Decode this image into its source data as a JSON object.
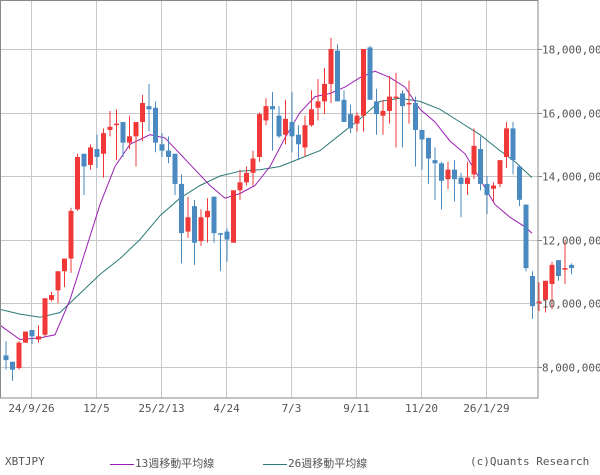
{
  "symbol": "XBTJPY",
  "copyright": "(c)Quants Research",
  "legend": [
    {
      "label": "13週移動平均線",
      "color": "#9B1FB4"
    },
    {
      "label": "26週移動平均線",
      "color": "#2A7A78"
    }
  ],
  "colors": {
    "up": "#F03838",
    "down": "#4A8AC0",
    "grid": "#C8C8C8",
    "axis": "#888888"
  },
  "chart_data": {
    "type": "candlestick",
    "title": "XBTJPY",
    "xlabel": "",
    "ylabel": "",
    "ylim": [
      7000000,
      19500000
    ],
    "grid": true,
    "legend_position": "bottom",
    "y_ticks": [
      {
        "value": 8000000,
        "label": "8,000,000"
      },
      {
        "value": 10000000,
        "label": "10,000,00"
      },
      {
        "value": 12000000,
        "label": "12,000,00"
      },
      {
        "value": 14000000,
        "label": "14,000,00"
      },
      {
        "value": 16000000,
        "label": "16,000,00"
      },
      {
        "value": 18000000,
        "label": "18,000,00"
      }
    ],
    "x_ticks": [
      {
        "index": 4,
        "label": "24/9/26"
      },
      {
        "index": 14,
        "label": "12/5"
      },
      {
        "index": 24,
        "label": "25/2/13"
      },
      {
        "index": 34,
        "label": "4/24"
      },
      {
        "index": 44,
        "label": "7/3"
      },
      {
        "index": 54,
        "label": "9/11"
      },
      {
        "index": 64,
        "label": "11/20"
      },
      {
        "index": 74,
        "label": "26/1/29"
      }
    ],
    "candles_ohlc": [
      [
        8350000,
        8800000,
        7900000,
        8200000
      ],
      [
        8150000,
        8100000,
        7550000,
        7900000
      ],
      [
        7950000,
        8800000,
        7900000,
        8750000
      ],
      [
        8750000,
        9050000,
        8750000,
        9100000
      ],
      [
        9150000,
        9150000,
        8700000,
        8950000
      ],
      [
        8850000,
        9300000,
        8750000,
        8950000
      ],
      [
        9000000,
        10100000,
        8950000,
        10150000
      ],
      [
        10100000,
        10350000,
        10050000,
        10250000
      ],
      [
        10400000,
        11000000,
        10000000,
        11000000
      ],
      [
        11000000,
        11300000,
        10500000,
        11400000
      ],
      [
        11400000,
        13000000,
        10950000,
        12900000
      ],
      [
        12950000,
        14700000,
        12900000,
        14600000
      ],
      [
        14700000,
        14600000,
        13400000,
        14300000
      ],
      [
        14350000,
        15000000,
        14200000,
        14900000
      ],
      [
        14850000,
        15300000,
        14250000,
        14600000
      ],
      [
        14700000,
        15500000,
        13950000,
        15350000
      ],
      [
        15450000,
        16050000,
        15250000,
        15550000
      ],
      [
        15600000,
        16100000,
        14500000,
        15650000
      ],
      [
        15700000,
        15700000,
        14600000,
        15050000
      ],
      [
        15050000,
        15900000,
        14850000,
        15250000
      ],
      [
        15250000,
        15700000,
        14300000,
        15700000
      ],
      [
        15700000,
        16550000,
        15100000,
        16300000
      ],
      [
        16200000,
        16900000,
        15400000,
        16100000
      ],
      [
        16150000,
        16350000,
        14750000,
        15050000
      ],
      [
        15000000,
        15350000,
        14600000,
        14800000
      ],
      [
        14800000,
        15250000,
        14400000,
        14600000
      ],
      [
        14700000,
        14500000,
        13400000,
        13750000
      ],
      [
        13750000,
        14050000,
        11250000,
        12200000
      ],
      [
        12250000,
        13350000,
        12050000,
        12700000
      ],
      [
        13050000,
        13250000,
        11200000,
        11900000
      ],
      [
        11950000,
        12950000,
        11800000,
        12700000
      ],
      [
        12700000,
        13300000,
        11900000,
        12900000
      ],
      [
        13350000,
        13350000,
        11900000,
        12200000
      ],
      [
        12200000,
        12100000,
        11000000,
        12150000
      ],
      [
        12250000,
        12350000,
        11300000,
        12000000
      ],
      [
        11900000,
        13400000,
        11900000,
        13550000
      ],
      [
        13550000,
        14200000,
        13250000,
        13800000
      ],
      [
        13800000,
        14300000,
        13700000,
        14100000
      ],
      [
        14100000,
        14800000,
        13700000,
        14550000
      ],
      [
        14600000,
        16000000,
        14450000,
        15950000
      ],
      [
        15750000,
        16450000,
        15600000,
        16200000
      ],
      [
        16200000,
        16650000,
        14800000,
        16100000
      ],
      [
        15900000,
        16200000,
        15200000,
        15250000
      ],
      [
        15300000,
        16400000,
        15000000,
        15800000
      ],
      [
        15700000,
        16650000,
        14750000,
        15250000
      ],
      [
        15300000,
        15600000,
        14500000,
        15000000
      ],
      [
        14900000,
        15900000,
        14600000,
        15600000
      ],
      [
        15600000,
        16700000,
        15550000,
        16100000
      ],
      [
        16150000,
        17050000,
        15750000,
        16350000
      ],
      [
        16350000,
        17400000,
        15950000,
        16900000
      ],
      [
        16900000,
        18350000,
        16300000,
        18000000
      ],
      [
        17950000,
        18150000,
        16750000,
        16350000
      ],
      [
        16400000,
        16700000,
        15800000,
        15700000
      ],
      [
        15950000,
        16250000,
        15350000,
        15500000
      ],
      [
        15650000,
        16000000,
        15400000,
        15900000
      ],
      [
        15900000,
        18000000,
        15400000,
        18000000
      ],
      [
        18050000,
        18100000,
        16400000,
        16400000
      ],
      [
        16350000,
        16750000,
        15300000,
        15950000
      ],
      [
        15900000,
        16400000,
        15300000,
        16050000
      ],
      [
        16050000,
        17150000,
        15650000,
        16500000
      ],
      [
        16450000,
        17250000,
        14900000,
        16500000
      ],
      [
        16600000,
        16700000,
        14900000,
        16200000
      ],
      [
        16300000,
        17000000,
        15650000,
        16300000
      ],
      [
        16300000,
        16500000,
        14300000,
        15450000
      ],
      [
        15450000,
        15450000,
        14200000,
        15150000
      ],
      [
        15200000,
        15200000,
        13750000,
        14550000
      ],
      [
        14500000,
        14900000,
        13250000,
        14400000
      ],
      [
        14400000,
        14450000,
        12950000,
        13850000
      ],
      [
        13900000,
        14450000,
        13600000,
        14200000
      ],
      [
        14200000,
        14500000,
        13200000,
        13900000
      ],
      [
        13950000,
        14100000,
        12700000,
        13750000
      ],
      [
        13750000,
        14450000,
        13400000,
        13950000
      ],
      [
        14050000,
        15500000,
        13900000,
        14950000
      ],
      [
        14850000,
        15250000,
        13550000,
        13750000
      ],
      [
        13750000,
        14000000,
        12800000,
        13400000
      ],
      [
        13600000,
        13800000,
        13200000,
        13700000
      ],
      [
        13750000,
        14450000,
        13650000,
        14500000
      ],
      [
        14600000,
        15700000,
        14250000,
        15500000
      ],
      [
        15500000,
        15700000,
        14050000,
        14500000
      ],
      [
        14300000,
        14350000,
        13050000,
        13250000
      ],
      [
        13100000,
        13100000,
        11000000,
        11100000
      ],
      [
        10850000,
        11000000,
        9500000,
        9900000
      ],
      [
        10000000,
        10650000,
        9750000,
        10050000
      ],
      [
        10100000,
        10450000,
        9700000,
        10700000
      ],
      [
        10600000,
        11300000,
        9800000,
        11200000
      ],
      [
        11350000,
        11300000,
        10700000,
        10850000
      ],
      [
        11050000,
        11950000,
        10600000,
        11100000
      ],
      [
        11200000,
        11250000,
        10900000,
        11100000
      ]
    ],
    "ma13": [
      [
        0,
        9300000
      ],
      [
        20,
        8850000
      ],
      [
        40,
        8900000
      ],
      [
        55,
        9000000
      ],
      [
        70,
        10100000
      ],
      [
        85,
        11600000
      ],
      [
        100,
        13100000
      ],
      [
        115,
        14300000
      ],
      [
        130,
        15000000
      ],
      [
        150,
        15300000
      ],
      [
        165,
        15200000
      ],
      [
        180,
        14700000
      ],
      [
        195,
        14200000
      ],
      [
        210,
        13700000
      ],
      [
        225,
        13300000
      ],
      [
        240,
        13450000
      ],
      [
        255,
        13700000
      ],
      [
        270,
        14300000
      ],
      [
        285,
        15200000
      ],
      [
        300,
        16000000
      ],
      [
        315,
        16500000
      ],
      [
        330,
        16600000
      ],
      [
        345,
        16800000
      ],
      [
        360,
        17100000
      ],
      [
        375,
        17300000
      ],
      [
        390,
        17100000
      ],
      [
        405,
        16800000
      ],
      [
        420,
        16100000
      ],
      [
        435,
        15700000
      ],
      [
        450,
        15100000
      ],
      [
        465,
        14700000
      ],
      [
        480,
        13900000
      ],
      [
        495,
        13100000
      ],
      [
        510,
        12700000
      ],
      [
        525,
        12400000
      ],
      [
        532,
        12200000
      ]
    ],
    "ma26": [
      [
        0,
        9800000
      ],
      [
        20,
        9650000
      ],
      [
        40,
        9550000
      ],
      [
        60,
        9700000
      ],
      [
        80,
        10300000
      ],
      [
        100,
        10900000
      ],
      [
        120,
        11400000
      ],
      [
        140,
        12000000
      ],
      [
        160,
        12750000
      ],
      [
        180,
        13300000
      ],
      [
        200,
        13700000
      ],
      [
        220,
        14000000
      ],
      [
        240,
        14150000
      ],
      [
        260,
        14200000
      ],
      [
        280,
        14300000
      ],
      [
        300,
        14550000
      ],
      [
        320,
        14800000
      ],
      [
        340,
        15300000
      ],
      [
        360,
        15800000
      ],
      [
        380,
        16350000
      ],
      [
        400,
        16450000
      ],
      [
        420,
        16350000
      ],
      [
        440,
        16100000
      ],
      [
        460,
        15700000
      ],
      [
        480,
        15300000
      ],
      [
        500,
        14800000
      ],
      [
        515,
        14450000
      ],
      [
        532,
        13950000
      ]
    ]
  }
}
